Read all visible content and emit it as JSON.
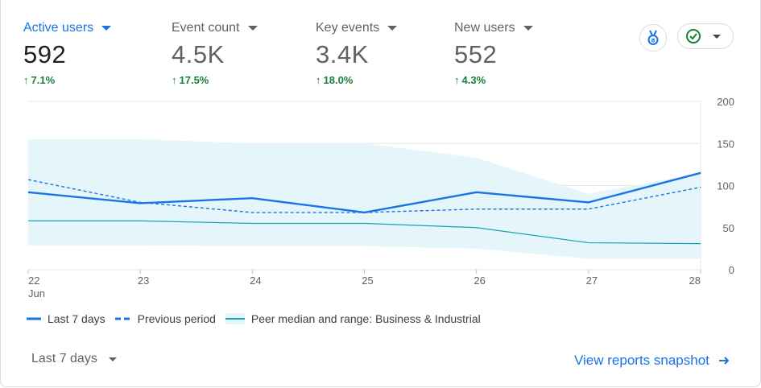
{
  "metrics": [
    {
      "label": "Active users",
      "value": "592",
      "delta": "7.1%",
      "active": true
    },
    {
      "label": "Event count",
      "value": "4.5K",
      "delta": "17.5%",
      "active": false
    },
    {
      "label": "Key events",
      "value": "3.4K",
      "delta": "18.0%",
      "active": false
    },
    {
      "label": "New users",
      "value": "552",
      "delta": "4.3%",
      "active": false
    }
  ],
  "legend": {
    "last7": "Last 7 days",
    "previous": "Previous period",
    "peer": "Peer median and range: Business & Industrial"
  },
  "footer": {
    "range_label": "Last 7 days",
    "snapshot_link": "View reports snapshot"
  },
  "colors": {
    "primary": "#1a73e8",
    "peer_line": "#12a4af",
    "peer_band": "#e4f6f9",
    "positive": "#188038"
  },
  "icons": {
    "insights": "medal-icon",
    "status": "check-circle-icon",
    "arrow": "arrow-right-icon"
  },
  "chart_data": {
    "type": "line",
    "x": [
      "22",
      "23",
      "24",
      "25",
      "26",
      "27",
      "28"
    ],
    "x_sublabel": "Jun",
    "yticks": [
      0,
      50,
      100,
      150,
      200
    ],
    "ylim": [
      0,
      200
    ],
    "grid": true,
    "series": [
      {
        "name": "Last 7 days",
        "style": "solid",
        "values": [
          92,
          79,
          85,
          68,
          92,
          80,
          115
        ]
      },
      {
        "name": "Previous period",
        "style": "dashed",
        "values": [
          107,
          80,
          68,
          68,
          72,
          72,
          98
        ]
      },
      {
        "name": "Peer median and range: Business & Industrial",
        "style": "median",
        "values": [
          58,
          58,
          55,
          55,
          50,
          32,
          31
        ],
        "range_low": [
          29,
          29,
          28,
          28,
          25,
          13,
          13
        ],
        "range_high": [
          155,
          155,
          150,
          150,
          133,
          90,
          115
        ]
      }
    ]
  }
}
